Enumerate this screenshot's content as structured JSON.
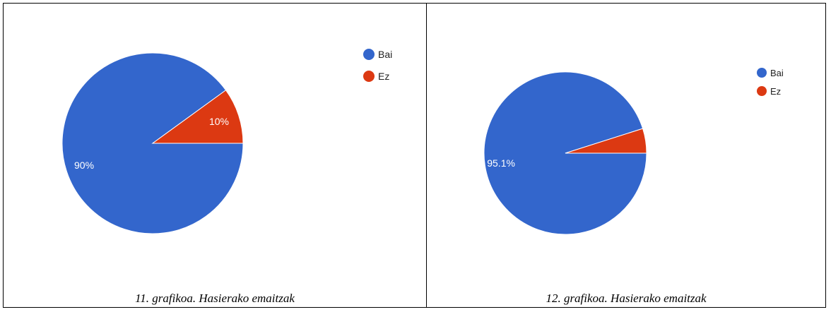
{
  "chart_data": [
    {
      "type": "pie",
      "categories": [
        "Bai",
        "Ez"
      ],
      "values": [
        90,
        10
      ],
      "slice_labels": [
        "90%",
        "10%"
      ],
      "colors": [
        "#3366cc",
        "#dc3912"
      ],
      "legend": "right",
      "caption": "11. grafikoa. Hasierako emaitzak"
    },
    {
      "type": "pie",
      "categories": [
        "Bai",
        "Ez"
      ],
      "values": [
        95.1,
        4.9
      ],
      "slice_labels": [
        "95.1%",
        ""
      ],
      "colors": [
        "#3366cc",
        "#dc3912"
      ],
      "legend": "right",
      "caption": "12. grafikoa. Hasierako emaitzak"
    }
  ]
}
